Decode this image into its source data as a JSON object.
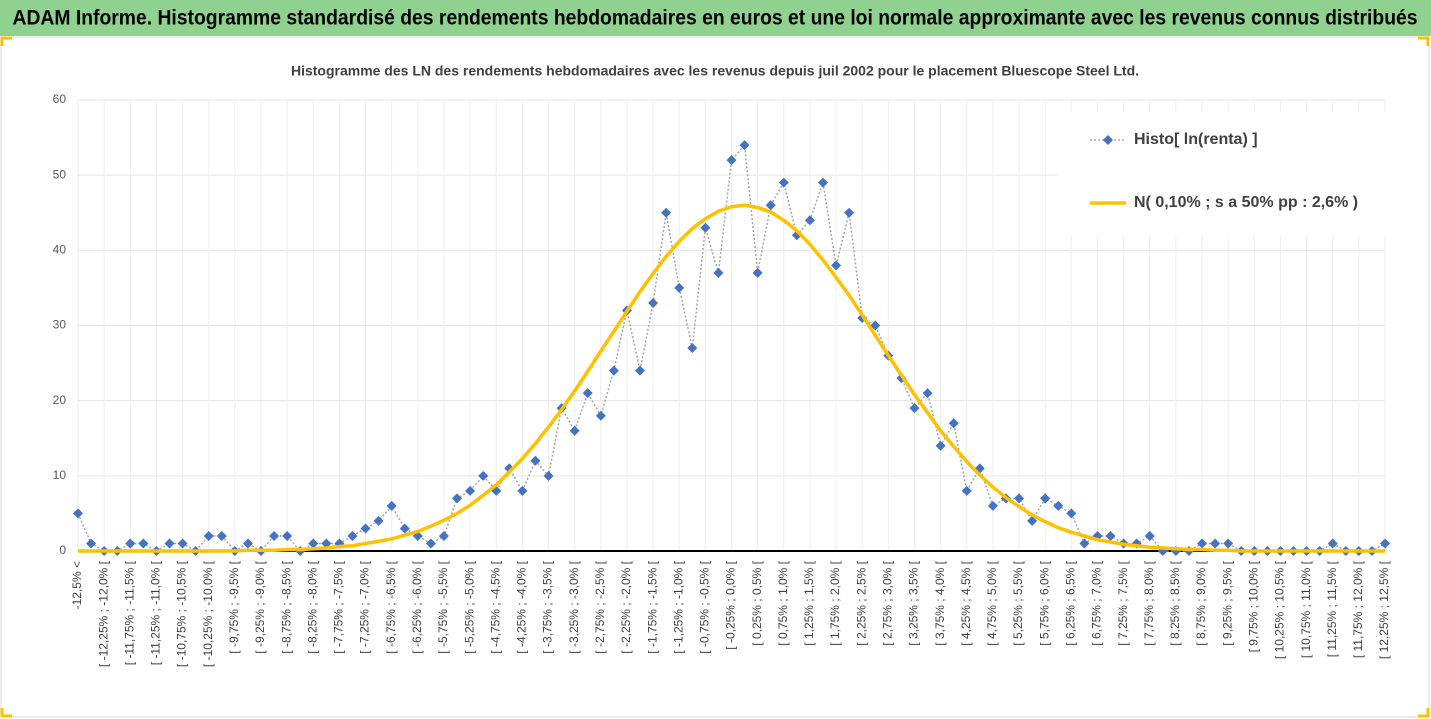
{
  "header": {
    "title": "ADAM Informe. Histogramme standardisé des rendements hebdomadaires en euros et une loi normale approximante avec les revenus connus distribués"
  },
  "chart_data": {
    "type": "line",
    "title": "Histogramme des LN des rendements hebdomadaires avec les revenus depuis juil 2002 pour le placement Bluescope Steel Ltd.",
    "categories": [
      "-12,5% <",
      null,
      "[ -12,25% ; -12,0% [",
      null,
      "[ -11,75% ; -11,5% [",
      null,
      "[ -11,25% ; -11,0% [",
      null,
      "[ -10,75% ; -10,5% [",
      null,
      "[ -10,25% ; -10,0% [",
      null,
      "[ -9,75% ; -9,5% [",
      null,
      "[ -9,25% ; -9,0% [",
      null,
      "[ -8,75% ; -8,5% [",
      null,
      "[ -8,25% ; -8,0% [",
      null,
      "[ -7,75% ; -7,5% [",
      null,
      "[ -7,25% ; -7,0% [",
      null,
      "[ -6,75% ; -6,5% [",
      null,
      "[ -6,25% ; -6,0% [",
      null,
      "[ -5,75% ; -5,5% [",
      null,
      "[ -5,25% ; -5,0% [",
      null,
      "[ -4,75% ; -4,5% [",
      null,
      "[ -4,25% ; -4,0% [",
      null,
      "[ -3,75% ; -3,5% [",
      null,
      "[ -3,25% ; -3,0% [",
      null,
      "[ -2,75% ; -2,5% [",
      null,
      "[ -2,25% ; -2,0% [",
      null,
      "[ -1,75% ; -1,5% [",
      null,
      "[ -1,25% ; -1,0% [",
      null,
      "[ -0,75% ; -0,5% [",
      null,
      "[ -0,25% ; 0,0% [",
      null,
      "[ 0,25% ; 0,5% [",
      null,
      "[ 0,75% ; 1,0% [",
      null,
      "[ 1,25% ; 1,5% [",
      null,
      "[ 1,75% ; 2,0% [",
      null,
      "[ 2,25% ; 2,5% [",
      null,
      "[ 2,75% ; 3,0% [",
      null,
      "[ 3,25% ; 3,5% [",
      null,
      "[ 3,75% ; 4,0% [",
      null,
      "[ 4,25% ; 4,5% [",
      null,
      "[ 4,75% ; 5,0% [",
      null,
      "[ 5,25% ; 5,5% [",
      null,
      "[ 5,75% ; 6,0% [",
      null,
      "[ 6,25% ; 6,5% [",
      null,
      "[ 6,75% ; 7,0% [",
      null,
      "[ 7,25% ; 7,5% [",
      null,
      "[ 7,75% ; 8,0% [",
      null,
      "[ 8,25% ; 8,5% [",
      null,
      "[ 8,75% ; 9,0% [",
      null,
      "[ 9,25% ; 9,5% [",
      null,
      "[ 9,75% ; 10,0% [",
      null,
      "[ 10,25% ; 10,5% [",
      null,
      "[ 10,75% ; 11,0% [",
      null,
      "[ 11,25% ; 11,5% [",
      null,
      "[ 11,75% ; 12,0% [",
      null,
      "[ 12,25% ; 12,5% ["
    ],
    "series": [
      {
        "name": "Histo[ ln(renta) ]",
        "color": "#4472c4",
        "values": [
          5,
          1,
          0,
          0,
          1,
          1,
          0,
          1,
          1,
          0,
          2,
          2,
          0,
          1,
          0,
          2,
          2,
          0,
          1,
          1,
          1,
          2,
          3,
          4,
          6,
          3,
          2,
          1,
          2,
          7,
          8,
          10,
          8,
          11,
          8,
          12,
          10,
          19,
          16,
          21,
          18,
          24,
          32,
          24,
          33,
          45,
          35,
          27,
          43,
          37,
          52,
          54,
          37,
          46,
          49,
          42,
          44,
          49,
          38,
          45,
          31,
          30,
          26,
          23,
          19,
          21,
          14,
          17,
          8,
          11,
          6,
          7,
          7,
          4,
          7,
          6,
          5,
          1,
          2,
          2,
          1,
          1,
          2,
          0,
          0,
          0,
          1,
          1,
          1,
          0,
          0,
          0,
          0,
          0,
          0,
          0,
          1,
          0,
          0,
          0,
          1
        ]
      },
      {
        "name": "N( 0,10% ; s a 50% pp : 2,6% )",
        "color": "#ffc000",
        "values": [
          0,
          0,
          0,
          0,
          0,
          0,
          0,
          0,
          0,
          0,
          0,
          0,
          0,
          0.1,
          0.1,
          0.1,
          0.2,
          0.2,
          0.3,
          0.4,
          0.6,
          0.7,
          1,
          1.3,
          1.6,
          2.1,
          2.6,
          3.3,
          4.1,
          5,
          6.1,
          7.4,
          8.8,
          10.5,
          12.3,
          14.3,
          16.5,
          18.8,
          21.3,
          23.9,
          26.6,
          29.2,
          31.9,
          34.5,
          36.9,
          39.2,
          41.2,
          42.9,
          44.2,
          45.2,
          45.8,
          46,
          45.7,
          45.1,
          44,
          42.6,
          40.8,
          38.7,
          36.4,
          34,
          31.4,
          28.7,
          26,
          23.4,
          20.8,
          18.4,
          16,
          13.9,
          11.9,
          10.1,
          8.5,
          7.1,
          5.9,
          4.8,
          3.9,
          3.1,
          2.5,
          2,
          1.5,
          1.2,
          0.9,
          0.7,
          0.5,
          0.4,
          0.3,
          0.2,
          0.2,
          0.1,
          0.1,
          0,
          0,
          0,
          0,
          0,
          0,
          0,
          0,
          0,
          0,
          0,
          0
        ]
      }
    ],
    "ylim": [
      0,
      60
    ],
    "yticks": [
      0,
      10,
      20,
      30,
      40,
      50,
      60
    ],
    "grid": true,
    "legend": "top-right"
  }
}
